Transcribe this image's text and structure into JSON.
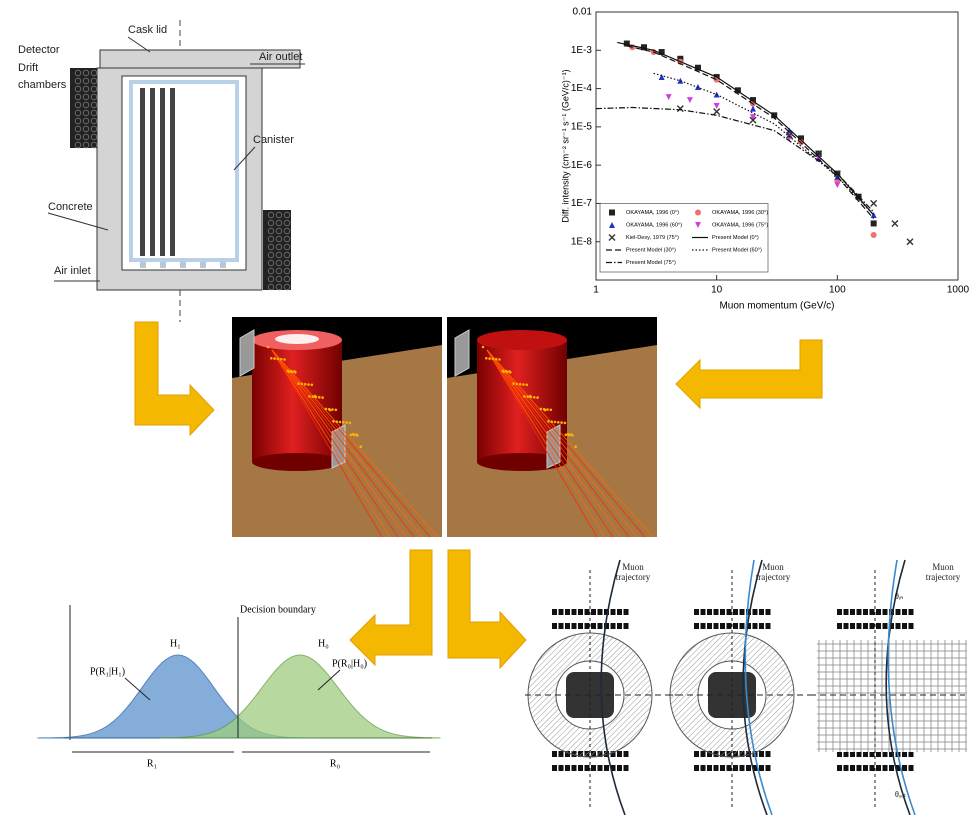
{
  "cask_diagram": {
    "cask_lid": "Cask lid",
    "air_outlet": "Air outlet",
    "detector": "Detector",
    "drift_chambers": "Drift chambers",
    "canister": "Canister",
    "concrete": "Concrete",
    "air_inlet": "Air inlet"
  },
  "chart_data": {
    "type": "scatter",
    "x_label": "Muon momentum (GeV/c)",
    "y_label": "Diff. intensity (cm⁻² sr⁻¹ s⁻¹ (GeV/c)⁻¹)",
    "log_x": true,
    "log_y": true,
    "legend": "lower left",
    "xlim": [
      1,
      1000
    ],
    "xticks": [
      1,
      10,
      100,
      1000
    ],
    "ylim": [
      1e-09,
      0.01
    ],
    "yticks": [
      {
        "value": 1e-08,
        "label": "1E-8"
      },
      {
        "value": 1e-07,
        "label": "1E-7"
      },
      {
        "value": 1e-06,
        "label": "1E-6"
      },
      {
        "value": 1e-05,
        "label": "1E-5"
      },
      {
        "value": 0.0001,
        "label": "1E-4"
      },
      {
        "value": 0.001,
        "label": "1E-3"
      },
      0.01
    ],
    "series": [
      {
        "name": "OKAYAMA, 1996 (0°)",
        "color": "#222222",
        "marker": "square",
        "x": [
          1.8,
          2.5,
          3.5,
          5,
          7,
          10,
          15,
          20,
          30,
          50,
          70,
          100,
          150,
          200
        ],
        "values": [
          0.0015,
          0.0012,
          0.0009,
          0.0006,
          0.00035,
          0.0002,
          9e-05,
          5e-05,
          2e-05,
          5e-06,
          2e-06,
          6e-07,
          1.5e-07,
          3e-08
        ]
      },
      {
        "name": "OKAYAMA, 1996 (30°)",
        "color": "#f07070",
        "marker": "circle",
        "x": [
          2,
          3,
          5,
          10,
          20,
          50,
          100,
          200
        ],
        "values": [
          0.0012,
          0.0009,
          0.0005,
          0.00017,
          4e-05,
          4e-06,
          4e-07,
          1.5e-08
        ]
      },
      {
        "name": "OKAYAMA, 1996 (60°)",
        "color": "#2233cc",
        "marker": "triangle",
        "x": [
          3.5,
          5,
          7,
          10,
          20,
          40,
          70,
          100,
          200
        ],
        "values": [
          0.0002,
          0.00016,
          0.00011,
          7e-05,
          3e-05,
          8e-06,
          1.5e-06,
          5e-07,
          5e-08
        ]
      },
      {
        "name": "OKAYAMA, 1996 (75°)",
        "color": "#d040e0",
        "marker": "triangle-down",
        "x": [
          4,
          6,
          10,
          20,
          40,
          70,
          100
        ],
        "values": [
          6e-05,
          5e-05,
          3.5e-05,
          1.8e-05,
          5e-06,
          1.5e-06,
          3e-07
        ]
      },
      {
        "name": "Kiel-Desy, 1979 (75°)",
        "color": "#333333",
        "marker": "x",
        "x": [
          5,
          10,
          20,
          40,
          70,
          100,
          200,
          300,
          400
        ],
        "values": [
          3e-05,
          2.5e-05,
          1.5e-05,
          6e-06,
          2e-06,
          6e-07,
          1e-07,
          3e-08,
          1e-08
        ]
      },
      {
        "name": "Present Model (0°)",
        "color": "#111111",
        "dash": "solid",
        "x": [
          1.5,
          3,
          10,
          30,
          100,
          200
        ],
        "values": [
          0.0016,
          0.001,
          0.0002,
          2e-05,
          6e-07,
          5e-08
        ]
      },
      {
        "name": "Present Model (30°)",
        "color": "#111111",
        "dash": "dashed",
        "x": [
          1.8,
          3,
          10,
          30,
          100,
          200
        ],
        "values": [
          0.0013,
          0.0009,
          0.00017,
          1.7e-05,
          5e-07,
          4e-08
        ]
      },
      {
        "name": "Present Model (60°)",
        "color": "#111111",
        "dash": "dotted",
        "x": [
          3,
          5,
          10,
          30,
          100,
          200
        ],
        "values": [
          0.00025,
          0.00016,
          7e-05,
          1.2e-05,
          5e-07,
          5e-08
        ]
      },
      {
        "name": "Present Model (75°)",
        "color": "#111111",
        "dash": "dashdot",
        "x": [
          1,
          2,
          5,
          10,
          30,
          100,
          200
        ],
        "values": [
          3e-05,
          3.2e-05,
          2.8e-05,
          2e-05,
          8e-06,
          6e-07,
          6e-08
        ]
      }
    ]
  },
  "decision_plot": {
    "decision_boundary": "Decision boundary",
    "h1": "H₁",
    "h0": "H₀",
    "p1": "P(R₁|H₁)",
    "p0": "P(R₀|H₀)",
    "r1": "R₁",
    "r0": "R₀"
  },
  "trajectory_panels": [
    {
      "label": "Muon trajectory"
    },
    {
      "label": "Muon trajectory"
    },
    {
      "label": "Muon trajectory",
      "theta_in": "θᵢₙ",
      "theta_out": "θₒᵤₜ"
    }
  ]
}
